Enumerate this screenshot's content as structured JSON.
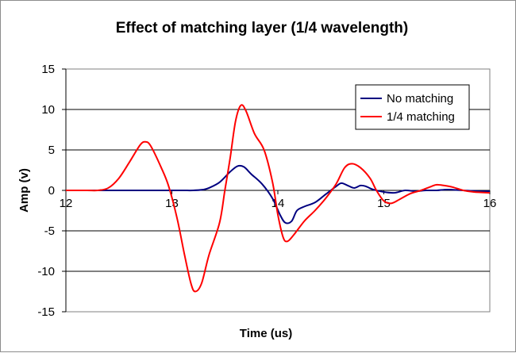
{
  "chart_data": {
    "type": "line",
    "title": "Effect of matching layer (1/4 wavelength)",
    "xlabel": "Time (us)",
    "ylabel": "Amp (v)",
    "xlim": [
      12,
      16
    ],
    "ylim": [
      -15,
      15
    ],
    "x_ticks": [
      "12",
      "13",
      "14",
      "15",
      "16"
    ],
    "y_ticks": [
      "15",
      "10",
      "5",
      "0",
      "-5",
      "-10",
      "-15"
    ],
    "grid": "horizontal",
    "legend_position": "top-right",
    "series": [
      {
        "name": "No matching",
        "color": "#000080",
        "points": [
          [
            12.0,
            0
          ],
          [
            12.2,
            0
          ],
          [
            12.6,
            0
          ],
          [
            12.9,
            0
          ],
          [
            13.1,
            0
          ],
          [
            13.2,
            0
          ],
          [
            13.3,
            0.1
          ],
          [
            13.35,
            0.3
          ],
          [
            13.45,
            1.0
          ],
          [
            13.55,
            2.3
          ],
          [
            13.62,
            3.0
          ],
          [
            13.68,
            2.9
          ],
          [
            13.75,
            2.0
          ],
          [
            13.85,
            0.8
          ],
          [
            13.95,
            -1.0
          ],
          [
            14.02,
            -3.0
          ],
          [
            14.07,
            -4.0
          ],
          [
            14.13,
            -3.8
          ],
          [
            14.18,
            -2.5
          ],
          [
            14.25,
            -2.0
          ],
          [
            14.35,
            -1.5
          ],
          [
            14.45,
            -0.5
          ],
          [
            14.55,
            0.5
          ],
          [
            14.6,
            0.9
          ],
          [
            14.66,
            0.6
          ],
          [
            14.72,
            0.3
          ],
          [
            14.78,
            0.6
          ],
          [
            14.83,
            0.5
          ],
          [
            14.9,
            0.1
          ],
          [
            15.0,
            -0.2
          ],
          [
            15.1,
            -0.3
          ],
          [
            15.2,
            0.0
          ],
          [
            15.3,
            -0.1
          ],
          [
            15.4,
            0.0
          ],
          [
            15.5,
            0.0
          ],
          [
            15.6,
            0.1
          ],
          [
            15.75,
            0.0
          ],
          [
            15.9,
            -0.1
          ],
          [
            16.0,
            -0.1
          ]
        ]
      },
      {
        "name": "1/4 matching",
        "color": "#ff0000",
        "points": [
          [
            12.0,
            0
          ],
          [
            12.2,
            0
          ],
          [
            12.3,
            0.0
          ],
          [
            12.4,
            0.3
          ],
          [
            12.5,
            1.5
          ],
          [
            12.6,
            3.5
          ],
          [
            12.7,
            5.6
          ],
          [
            12.75,
            6.0
          ],
          [
            12.8,
            5.5
          ],
          [
            12.9,
            2.8
          ],
          [
            12.97,
            0.5
          ],
          [
            13.05,
            -3.5
          ],
          [
            13.12,
            -8.0
          ],
          [
            13.18,
            -11.5
          ],
          [
            13.22,
            -12.5
          ],
          [
            13.28,
            -11.5
          ],
          [
            13.35,
            -8.0
          ],
          [
            13.45,
            -4.0
          ],
          [
            13.5,
            0.0
          ],
          [
            13.55,
            4.0
          ],
          [
            13.6,
            8.5
          ],
          [
            13.65,
            10.5
          ],
          [
            13.7,
            9.8
          ],
          [
            13.78,
            7.0
          ],
          [
            13.87,
            5.0
          ],
          [
            13.95,
            1.0
          ],
          [
            14.0,
            -3.0
          ],
          [
            14.05,
            -5.8
          ],
          [
            14.09,
            -6.3
          ],
          [
            14.15,
            -5.5
          ],
          [
            14.25,
            -3.8
          ],
          [
            14.35,
            -2.5
          ],
          [
            14.45,
            -1.0
          ],
          [
            14.55,
            0.8
          ],
          [
            14.63,
            2.8
          ],
          [
            14.7,
            3.3
          ],
          [
            14.78,
            2.8
          ],
          [
            14.87,
            1.5
          ],
          [
            14.93,
            0.0
          ],
          [
            15.0,
            -1.3
          ],
          [
            15.07,
            -1.6
          ],
          [
            15.15,
            -1.1
          ],
          [
            15.25,
            -0.4
          ],
          [
            15.35,
            0.0
          ],
          [
            15.45,
            0.5
          ],
          [
            15.5,
            0.7
          ],
          [
            15.57,
            0.6
          ],
          [
            15.65,
            0.4
          ],
          [
            15.75,
            0.0
          ],
          [
            15.85,
            -0.2
          ],
          [
            16.0,
            -0.3
          ]
        ]
      }
    ]
  }
}
